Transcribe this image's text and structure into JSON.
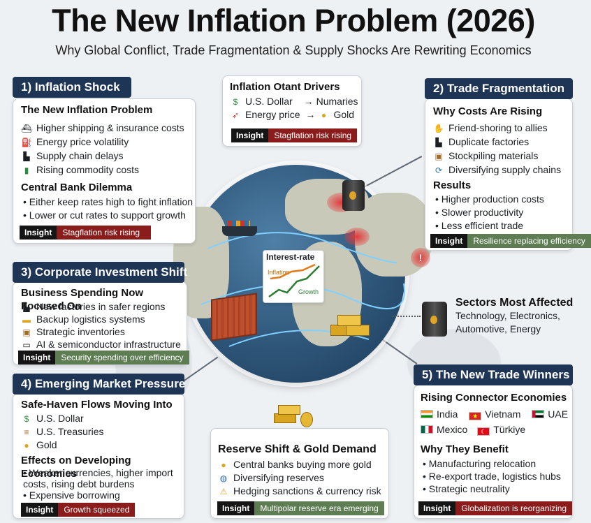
{
  "header": {
    "title": "The New Inflation Problem (2026)",
    "subtitle": "Why Global Conflict, Trade Fragmentation & Supply Shocks Are Rewriting Economics"
  },
  "inflation_shock": {
    "head": "1)  Inflation Shock",
    "sub1": "The New Inflation Problem",
    "items": [
      {
        "icon": "ship-icon",
        "glyph": "⛴",
        "label": "Higher shipping & insurance costs"
      },
      {
        "icon": "fuel-pump-icon",
        "glyph": "⛽",
        "label": "Energy price volatility"
      },
      {
        "icon": "factory-icon",
        "glyph": "▙",
        "label": "Supply chain delays"
      },
      {
        "icon": "battery-icon",
        "glyph": "▮",
        "label": "Rising commodity costs"
      }
    ],
    "sub2": "Central Bank Dilemma",
    "bullets": [
      "Either keep rates high to fight inflation",
      "Lower or cut rates to support growth"
    ],
    "insight_key": "Insight",
    "insight_val": "Stagflation risk rising"
  },
  "drivers": {
    "head": "Inflation Otant Drivers",
    "row1_a": "U.S. Dollar",
    "row1_arrow": "→",
    "row1_b": "Numaries",
    "row2_a": "Energy price",
    "row2_arrow": "→",
    "row2_b": "Gold",
    "insight_key": "Insight",
    "insight_val": "Stagflation risk rising"
  },
  "trade_frag": {
    "head": "2)  Trade Fragmentation",
    "sub1": "Why Costs Are Rising",
    "items": [
      {
        "icon": "handshake-icon",
        "glyph": "🤝",
        "label": "Friend-shoring to allies"
      },
      {
        "icon": "factory-icon",
        "glyph": "▙",
        "label": "Duplicate factories"
      },
      {
        "icon": "box-icon",
        "glyph": "▣",
        "label": "Stockpiling materials"
      },
      {
        "icon": "cycle-icon",
        "glyph": "⟳",
        "label": "Diversifying supply chains"
      }
    ],
    "sub2": "Results",
    "bullets": [
      "Higher production costs",
      "Slower productivity",
      "Less efficient trade"
    ],
    "insight_key": "Insight",
    "insight_val": "Resilience replacing efficiency"
  },
  "corp_invest": {
    "head": "3)  Corporate Investment Shift",
    "sub1": "Business Spending Now Focused On",
    "items": [
      {
        "icon": "factory-icon",
        "glyph": "▙",
        "label": "New factories in safer regions"
      },
      {
        "icon": "truck-icon",
        "glyph": "▬",
        "label": "Backup logistics systems"
      },
      {
        "icon": "box-icon",
        "glyph": "▣",
        "label": "Strategic inventories"
      },
      {
        "icon": "laptop-icon",
        "glyph": "▭",
        "label": "AI & semiconductor infrastructure"
      }
    ],
    "insight_key": "Insight",
    "insight_val": "Security spending over efficiency"
  },
  "sectors": {
    "head": "Sectors Most Affected",
    "line1": "Technology, Electronics,",
    "line2": "Automotive, Energy"
  },
  "emerging": {
    "head": "4)  Emerging Market Pressure",
    "sub1": "Safe-Haven Flows Moving Into",
    "items": [
      {
        "icon": "cash-icon",
        "glyph": "$",
        "label": "U.S. Dollar"
      },
      {
        "icon": "scroll-icon",
        "glyph": "≡",
        "label": "U.S. Treasuries"
      },
      {
        "icon": "medal-icon",
        "glyph": "●",
        "label": "Gold"
      }
    ],
    "sub2": "Effects on Developing Economies",
    "bullets": [
      "Weaker currencies, higher import",
      "Expensive borrowing"
    ],
    "bullet1_cont": "costs, rising debt burdens",
    "insight_key": "Insight",
    "insight_val": "Growth squeezed"
  },
  "reserve": {
    "head": "Reserve Shift & Gold Demand",
    "items": [
      {
        "icon": "medal-icon",
        "glyph": "●",
        "label": "Central banks buying more gold"
      },
      {
        "icon": "globe-icon",
        "glyph": "◍",
        "label": "Diversifying reserves"
      },
      {
        "icon": "warning-icon",
        "glyph": "⚠",
        "label": "Hedging sanctions & currency risk"
      }
    ],
    "insight_key": "Insight",
    "insight_val": "Multipolar reserve era emerging"
  },
  "winners": {
    "head": "5)  The New Trade Winners",
    "sub1": "Rising Connector Economies",
    "countries_row1": [
      {
        "flag": "india-flag-icon",
        "name": "India"
      },
      {
        "flag": "vietnam-flag-icon",
        "name": "Vietnam"
      },
      {
        "flag": "uae-flag-icon",
        "name": "UAE"
      }
    ],
    "countries_row2": [
      {
        "flag": "mexico-flag-icon",
        "name": "Mexico"
      },
      {
        "flag": "turkiye-flag-icon",
        "name": "Türkiye"
      }
    ],
    "sub2": "Why They Benefit",
    "bullets": [
      "Manufacturing relocation",
      "Re-export trade, logistics hubs",
      "Strategic neutrality"
    ],
    "insight_key": "Insight",
    "insight_val": "Globalization is reorganizing"
  },
  "globe": {
    "chart_title": "Interest-rate",
    "chart_label_a": "Inflation",
    "chart_label_b": "Growth"
  },
  "colors": {
    "navy": "#1f3556",
    "insight_red": "#8a1c1c",
    "insight_green": "#5e7d53",
    "gold": "#d9a521"
  }
}
